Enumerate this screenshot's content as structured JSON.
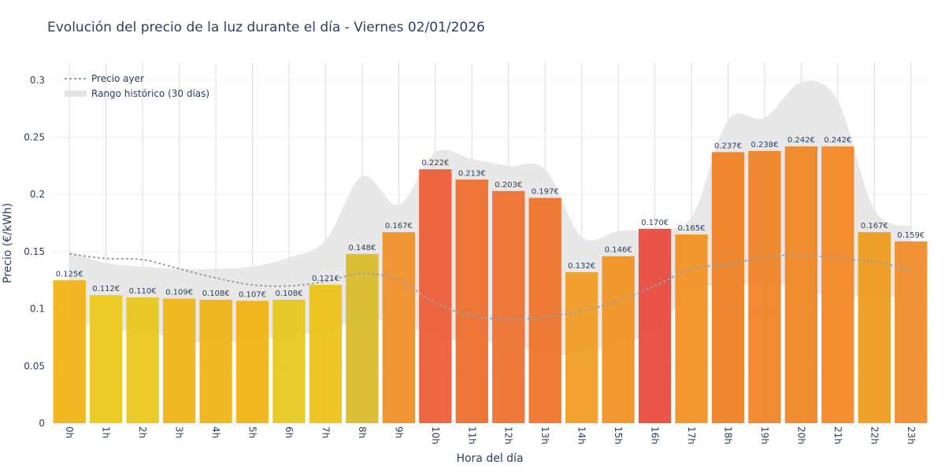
{
  "chart_data": {
    "type": "bar",
    "title": "Evolución del precio de la luz durante el día - Viernes 02/01/2026",
    "xlabel": "Hora del día",
    "ylabel": "Precio (€/kWh)",
    "ylim": [
      0,
      0.315
    ],
    "yticks": [
      0,
      0.05,
      0.1,
      0.15,
      0.2,
      0.25,
      0.3
    ],
    "ytick_labels": [
      "0",
      "0.05",
      "0.1",
      "0.15",
      "0.2",
      "0.25",
      "0.3"
    ],
    "categories": [
      "0h",
      "1h",
      "2h",
      "3h",
      "4h",
      "5h",
      "6h",
      "7h",
      "8h",
      "9h",
      "10h",
      "11h",
      "12h",
      "13h",
      "14h",
      "15h",
      "16h",
      "17h",
      "18h",
      "19h",
      "20h",
      "21h",
      "22h",
      "23h"
    ],
    "values": [
      0.125,
      0.112,
      0.11,
      0.109,
      0.108,
      0.107,
      0.108,
      0.121,
      0.148,
      0.167,
      0.222,
      0.213,
      0.203,
      0.197,
      0.132,
      0.146,
      0.17,
      0.165,
      0.237,
      0.238,
      0.242,
      0.242,
      0.167,
      0.159
    ],
    "value_labels": [
      "0.125€",
      "0.112€",
      "0.110€",
      "0.109€",
      "0.108€",
      "0.107€",
      "0.108€",
      "0.121€",
      "0.148€",
      "0.167€",
      "0.222€",
      "0.213€",
      "0.203€",
      "0.197€",
      "0.132€",
      "0.146€",
      "0.170€",
      "0.165€",
      "0.237€",
      "0.238€",
      "0.242€",
      "0.242€",
      "0.167€",
      "0.159€"
    ],
    "bar_colors": [
      "#f1b211",
      "#ebc715",
      "#e8c618",
      "#f0b414",
      "#f0b315",
      "#f1b311",
      "#e5c61b",
      "#ecc214",
      "#d8bb28",
      "#ef8e27",
      "#ec5b33",
      "#ee6c2a",
      "#ee6f2b",
      "#ee712a",
      "#f09b22",
      "#f0911f",
      "#e8483a",
      "#f1901e",
      "#ef7f22",
      "#ef8124",
      "#f08421",
      "#f28523",
      "#ef9a1b",
      "#ef8a26"
    ],
    "series": [
      {
        "name": "Precio ayer",
        "type": "line",
        "color": "#9aa0a6",
        "values": [
          0.148,
          0.144,
          0.143,
          0.135,
          0.127,
          0.121,
          0.12,
          0.124,
          0.131,
          0.125,
          0.105,
          0.094,
          0.091,
          0.093,
          0.098,
          0.107,
          0.12,
          0.135,
          0.139,
          0.145,
          0.147,
          0.144,
          0.141,
          0.134
        ]
      },
      {
        "name": "Rango histórico (30 días)",
        "type": "band",
        "color": "#e5e5e5",
        "upper": [
          0.15,
          0.14,
          0.137,
          0.135,
          0.135,
          0.137,
          0.145,
          0.16,
          0.216,
          0.191,
          0.237,
          0.231,
          0.225,
          0.222,
          0.163,
          0.168,
          0.17,
          0.18,
          0.265,
          0.267,
          0.298,
          0.282,
          0.187,
          0.172
        ],
        "lower": [
          0.092,
          0.081,
          0.081,
          0.073,
          0.07,
          0.073,
          0.076,
          0.081,
          0.09,
          0.087,
          0.076,
          0.071,
          0.07,
          0.061,
          0.061,
          0.071,
          0.079,
          0.117,
          0.119,
          0.123,
          0.118,
          0.109,
          0.112,
          0.107
        ]
      }
    ],
    "legend": {
      "placement": "top-left",
      "items": [
        "Precio ayer",
        "Rango histórico (30 días)"
      ]
    },
    "grid": true
  }
}
